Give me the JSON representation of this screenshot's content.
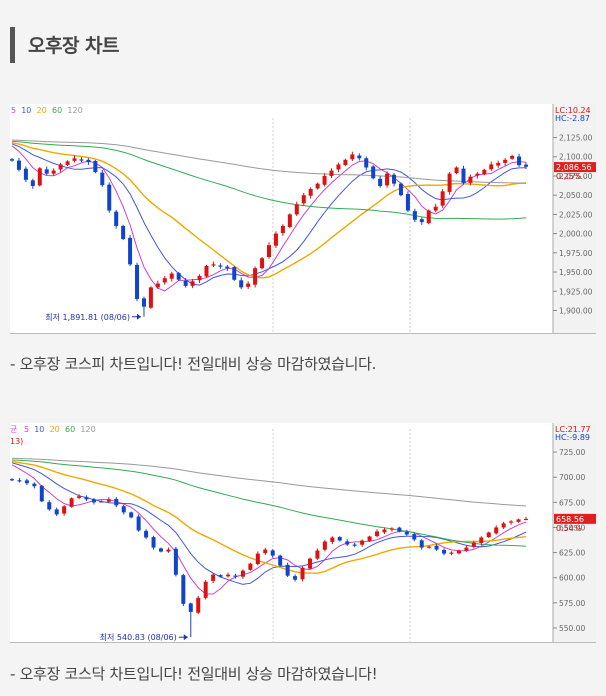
{
  "section_title": "오후장 차트",
  "colors": {
    "up": "#dd1111",
    "down": "#1144cc",
    "ma5": "#cc44cc",
    "ma10": "#4455dd",
    "ma20": "#f0a800",
    "ma60": "#33aa55",
    "ma120": "#999999"
  },
  "charts": [
    {
      "caption": "- 오후장 코스피 차트입니다! 전일대비 상승 마감하였습니다.",
      "legend": [
        "5",
        "10",
        "20",
        "60",
        "120"
      ],
      "lc": "LC:10.24",
      "hc": "HC:-2.87",
      "current_price": "2,086.56",
      "change_pct": "0.25%",
      "low_label": "최저 1,891.81 (08/06)",
      "y_ticks": [
        "2,125.00",
        "2,100.00",
        "2,075.00",
        "2,050.00",
        "2,025.00",
        "2,000.00",
        "1,975.00",
        "1,950.00",
        "1,925.00",
        "1,900.00"
      ]
    },
    {
      "caption": "- 오후장 코스닥 차트입니다! 전일대비 상승 마감하였습니다!",
      "legend_prefix": "균",
      "side_marker": "13)",
      "legend": [
        "5",
        "10",
        "20",
        "60",
        "120"
      ],
      "lc": "LC:21.77",
      "hc": "HC:-9.89",
      "current_price": "658.56",
      "change_pct": "0.54%",
      "low_label": "최저 540.83 (08/06)",
      "y_ticks": [
        "725.00",
        "700.00",
        "675.00",
        "650.00",
        "625.00",
        "600.00",
        "575.00",
        "550.00"
      ]
    }
  ],
  "chart_data": [
    {
      "type": "candlestick",
      "title": "",
      "ylim": [
        1885,
        2140
      ],
      "y_ticks": [
        2125,
        2100,
        2075,
        2050,
        2025,
        2000,
        1975,
        1950,
        1925,
        1900
      ],
      "closes": [
        2095,
        2083,
        2070,
        2062,
        2085,
        2078,
        2082,
        2090,
        2094,
        2098,
        2096,
        2093,
        2080,
        2063,
        2030,
        2010,
        1993,
        1960,
        1915,
        1905,
        1930,
        1935,
        1942,
        1948,
        1940,
        1932,
        1938,
        1945,
        1958,
        1960,
        1957,
        1955,
        1940,
        1930,
        1935,
        1955,
        1968,
        1985,
        2000,
        2010,
        2025,
        2038,
        2050,
        2058,
        2065,
        2075,
        2082,
        2090,
        2096,
        2103,
        2098,
        2086,
        2072,
        2062,
        2078,
        2065,
        2050,
        2030,
        2018,
        2015,
        2030,
        2035,
        2055,
        2078,
        2086,
        2066,
        2074,
        2078,
        2083,
        2090,
        2092,
        2096,
        2101,
        2089,
        2087
      ],
      "low": {
        "value": 1891.81,
        "date": "08/06"
      },
      "current": 2086.56,
      "change_pct": 0.25
    },
    {
      "type": "candlestick",
      "title": "",
      "ylim": [
        545,
        740
      ],
      "y_ticks": [
        725,
        700,
        675,
        650,
        625,
        600,
        575,
        550
      ],
      "closes": [
        697,
        696,
        694,
        691,
        676,
        668,
        663,
        671,
        679,
        681,
        678,
        675,
        676,
        678,
        672,
        665,
        660,
        647,
        640,
        630,
        626,
        628,
        603,
        574,
        566,
        580,
        596,
        603,
        601,
        603,
        601,
        607,
        614,
        624,
        628,
        622,
        612,
        602,
        598,
        610,
        619,
        627,
        636,
        640,
        637,
        633,
        632,
        637,
        641,
        646,
        648,
        649,
        646,
        643,
        638,
        630,
        631,
        628,
        624,
        625,
        627,
        630,
        635,
        640,
        645,
        650,
        654,
        656,
        658,
        658.56
      ],
      "low": {
        "value": 540.83,
        "date": "08/06"
      },
      "current": 658.56,
      "change_pct": 0.54
    }
  ]
}
